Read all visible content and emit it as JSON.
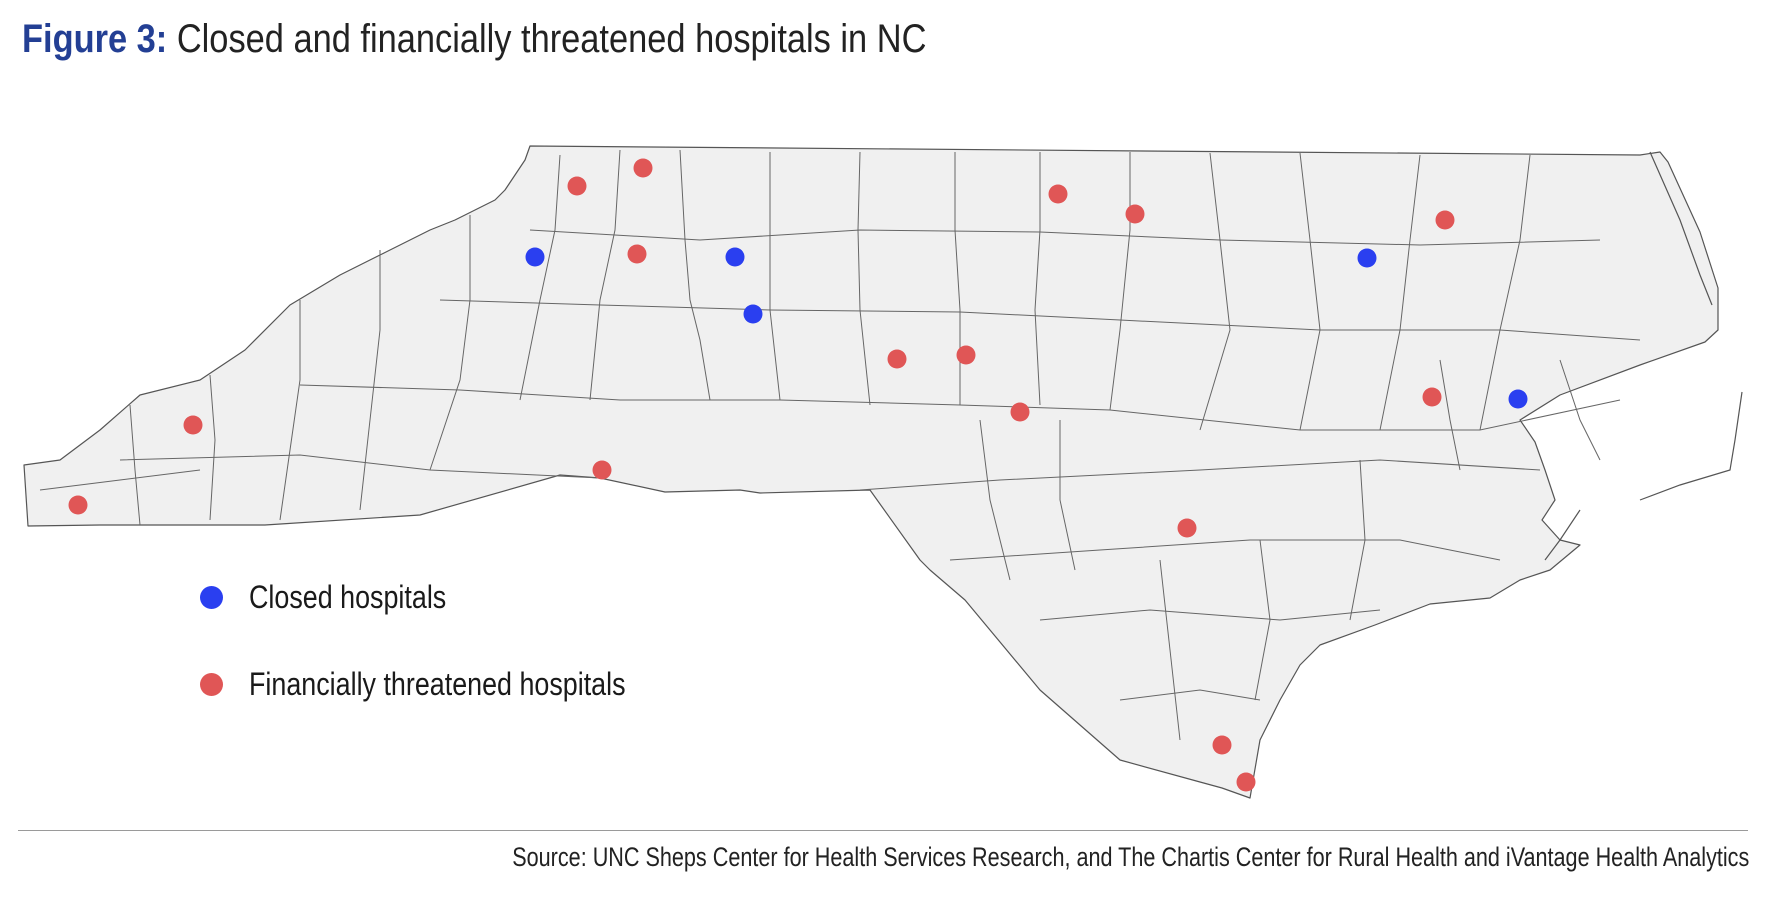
{
  "title": {
    "figure_label": "Figure 3:",
    "text": "Closed and financially threatened hospitals in NC"
  },
  "legend": {
    "closed": {
      "label": "Closed hospitals",
      "color": "#2a3ff0"
    },
    "threatened": {
      "label": "Financially threatened hospitals",
      "color": "#e05656"
    }
  },
  "map": {
    "region": "North Carolina",
    "fill_color": "#f0f0f0",
    "border_color": "#555555"
  },
  "source": "Source: UNC Sheps Center for Health Services Research, and The Chartis Center for Rural Health and iVantage Health Analytics"
}
